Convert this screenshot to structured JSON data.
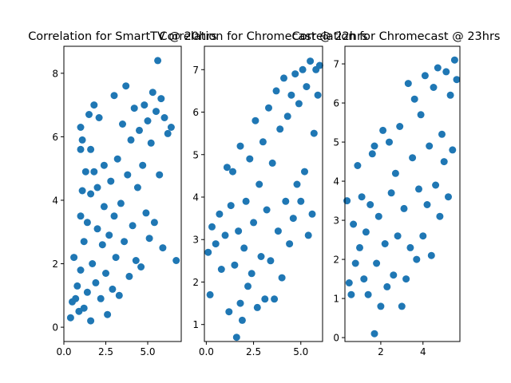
{
  "chart_data": [
    {
      "type": "scatter",
      "title": "Correlation for SmartTV @ 20hrs",
      "xlabel": "",
      "ylabel": "",
      "xlim": [
        0.0,
        7.0
      ],
      "ylim": [
        -0.45,
        8.85
      ],
      "xticks": [
        0.0,
        2.5,
        5.0
      ],
      "xtick_labels": [
        "0.0",
        "2.5",
        "5.0"
      ],
      "yticks": [
        0,
        2,
        4,
        6,
        8
      ],
      "ytick_labels": [
        "0",
        "2",
        "4",
        "6",
        "8"
      ],
      "grid": false,
      "color": "#1f77b4",
      "points": [
        [
          0.4,
          0.3
        ],
        [
          0.5,
          0.8
        ],
        [
          0.6,
          2.2
        ],
        [
          0.7,
          0.9
        ],
        [
          0.8,
          1.3
        ],
        [
          0.9,
          0.5
        ],
        [
          1.0,
          1.8
        ],
        [
          1.0,
          3.5
        ],
        [
          1.0,
          5.6
        ],
        [
          1.0,
          6.3
        ],
        [
          1.1,
          4.3
        ],
        [
          1.1,
          5.9
        ],
        [
          1.2,
          0.6
        ],
        [
          1.2,
          2.7
        ],
        [
          1.3,
          4.9
        ],
        [
          1.4,
          1.1
        ],
        [
          1.4,
          3.3
        ],
        [
          1.5,
          6.7
        ],
        [
          1.6,
          4.2
        ],
        [
          1.6,
          5.6
        ],
        [
          1.6,
          0.2
        ],
        [
          1.7,
          2.0
        ],
        [
          1.8,
          7.0
        ],
        [
          1.8,
          4.9
        ],
        [
          1.9,
          1.4
        ],
        [
          2.0,
          4.4
        ],
        [
          2.0,
          3.1
        ],
        [
          2.1,
          6.6
        ],
        [
          2.2,
          0.9
        ],
        [
          2.3,
          2.6
        ],
        [
          2.4,
          5.1
        ],
        [
          2.4,
          3.8
        ],
        [
          2.5,
          1.7
        ],
        [
          2.6,
          0.4
        ],
        [
          2.7,
          2.9
        ],
        [
          2.8,
          4.6
        ],
        [
          2.9,
          1.2
        ],
        [
          3.0,
          3.5
        ],
        [
          3.0,
          7.3
        ],
        [
          3.1,
          2.2
        ],
        [
          3.2,
          5.3
        ],
        [
          3.3,
          1.0
        ],
        [
          3.4,
          3.9
        ],
        [
          3.5,
          6.4
        ],
        [
          3.6,
          2.7
        ],
        [
          3.7,
          7.6
        ],
        [
          3.8,
          4.8
        ],
        [
          3.9,
          1.6
        ],
        [
          4.0,
          5.9
        ],
        [
          4.1,
          3.2
        ],
        [
          4.2,
          6.9
        ],
        [
          4.3,
          2.1
        ],
        [
          4.4,
          4.4
        ],
        [
          4.5,
          6.2
        ],
        [
          4.6,
          1.9
        ],
        [
          4.7,
          5.1
        ],
        [
          4.8,
          7.0
        ],
        [
          4.9,
          3.6
        ],
        [
          5.0,
          6.5
        ],
        [
          5.1,
          2.8
        ],
        [
          5.2,
          5.8
        ],
        [
          5.3,
          7.4
        ],
        [
          5.4,
          3.3
        ],
        [
          5.5,
          6.8
        ],
        [
          5.6,
          8.4
        ],
        [
          5.7,
          4.8
        ],
        [
          5.8,
          7.2
        ],
        [
          5.9,
          2.5
        ],
        [
          6.0,
          6.6
        ],
        [
          6.2,
          6.1
        ],
        [
          6.4,
          6.3
        ],
        [
          6.7,
          2.1
        ]
      ]
    },
    {
      "type": "scatter",
      "title": "Correlation for Chromecast @ 22hrs",
      "xlabel": "",
      "ylabel": "",
      "xlim": [
        -0.1,
        6.15
      ],
      "ylim": [
        0.6,
        7.55
      ],
      "xticks": [
        0.0,
        2.5,
        5.0
      ],
      "xtick_labels": [
        "0.0",
        "2.5",
        "5.0"
      ],
      "yticks": [
        1,
        2,
        3,
        4,
        5,
        6,
        7
      ],
      "ytick_labels": [
        "1",
        "2",
        "3",
        "4",
        "5",
        "6",
        "7"
      ],
      "grid": false,
      "color": "#1f77b4",
      "points": [
        [
          0.1,
          2.7
        ],
        [
          0.2,
          1.7
        ],
        [
          0.3,
          3.3
        ],
        [
          0.5,
          2.9
        ],
        [
          0.7,
          3.6
        ],
        [
          0.8,
          2.3
        ],
        [
          1.0,
          3.1
        ],
        [
          1.1,
          4.7
        ],
        [
          1.2,
          1.3
        ],
        [
          1.3,
          3.8
        ],
        [
          1.4,
          4.6
        ],
        [
          1.5,
          2.4
        ],
        [
          1.6,
          0.7
        ],
        [
          1.7,
          3.2
        ],
        [
          1.8,
          1.5
        ],
        [
          1.8,
          5.2
        ],
        [
          1.9,
          1.1
        ],
        [
          2.0,
          2.8
        ],
        [
          2.1,
          3.9
        ],
        [
          2.2,
          1.9
        ],
        [
          2.3,
          4.9
        ],
        [
          2.4,
          2.2
        ],
        [
          2.5,
          3.4
        ],
        [
          2.6,
          5.8
        ],
        [
          2.7,
          1.4
        ],
        [
          2.8,
          4.3
        ],
        [
          2.9,
          2.6
        ],
        [
          3.0,
          5.3
        ],
        [
          3.1,
          1.6
        ],
        [
          3.2,
          3.7
        ],
        [
          3.3,
          6.1
        ],
        [
          3.4,
          2.5
        ],
        [
          3.5,
          4.8
        ],
        [
          3.6,
          1.6
        ],
        [
          3.7,
          6.5
        ],
        [
          3.8,
          3.2
        ],
        [
          3.9,
          5.6
        ],
        [
          4.0,
          2.1
        ],
        [
          4.1,
          6.8
        ],
        [
          4.2,
          3.9
        ],
        [
          4.3,
          5.9
        ],
        [
          4.4,
          2.9
        ],
        [
          4.5,
          6.4
        ],
        [
          4.6,
          3.5
        ],
        [
          4.7,
          6.9
        ],
        [
          4.8,
          4.3
        ],
        [
          4.9,
          6.2
        ],
        [
          5.0,
          3.9
        ],
        [
          5.1,
          7.0
        ],
        [
          5.2,
          4.6
        ],
        [
          5.3,
          6.6
        ],
        [
          5.4,
          3.1
        ],
        [
          5.5,
          7.2
        ],
        [
          5.6,
          3.6
        ],
        [
          5.7,
          5.5
        ],
        [
          5.8,
          7.0
        ],
        [
          5.9,
          6.4
        ],
        [
          6.0,
          7.1
        ]
      ]
    },
    {
      "type": "scatter",
      "title": "Correlation for Chromecast @ 23hrs",
      "xlabel": "",
      "ylabel": "",
      "xlim": [
        0.3,
        5.75
      ],
      "ylim": [
        -0.1,
        7.45
      ],
      "xticks": [
        2,
        4
      ],
      "xtick_labels": [
        "2",
        "4"
      ],
      "yticks": [
        0,
        1,
        2,
        3,
        4,
        5,
        6,
        7
      ],
      "ytick_labels": [
        "0",
        "1",
        "2",
        "3",
        "4",
        "5",
        "6",
        "7"
      ],
      "grid": false,
      "color": "#1f77b4",
      "points": [
        [
          0.4,
          3.5
        ],
        [
          0.5,
          1.4
        ],
        [
          0.6,
          1.1
        ],
        [
          0.7,
          2.9
        ],
        [
          0.8,
          1.9
        ],
        [
          0.9,
          4.4
        ],
        [
          1.0,
          2.3
        ],
        [
          1.1,
          3.6
        ],
        [
          1.2,
          1.5
        ],
        [
          1.3,
          2.7
        ],
        [
          1.4,
          1.1
        ],
        [
          1.5,
          3.4
        ],
        [
          1.6,
          4.7
        ],
        [
          1.7,
          4.9
        ],
        [
          1.7,
          0.1
        ],
        [
          1.8,
          1.9
        ],
        [
          1.9,
          3.1
        ],
        [
          2.0,
          0.8
        ],
        [
          2.1,
          5.3
        ],
        [
          2.2,
          2.4
        ],
        [
          2.3,
          1.3
        ],
        [
          2.4,
          5.0
        ],
        [
          2.5,
          3.7
        ],
        [
          2.6,
          1.6
        ],
        [
          2.7,
          4.2
        ],
        [
          2.8,
          2.6
        ],
        [
          2.9,
          5.4
        ],
        [
          3.0,
          0.8
        ],
        [
          3.1,
          3.3
        ],
        [
          3.2,
          1.5
        ],
        [
          3.3,
          6.5
        ],
        [
          3.4,
          2.3
        ],
        [
          3.5,
          4.6
        ],
        [
          3.6,
          6.1
        ],
        [
          3.7,
          2.0
        ],
        [
          3.8,
          3.8
        ],
        [
          3.9,
          5.7
        ],
        [
          4.0,
          2.6
        ],
        [
          4.1,
          6.7
        ],
        [
          4.2,
          3.4
        ],
        [
          4.3,
          4.9
        ],
        [
          4.4,
          2.1
        ],
        [
          4.5,
          6.4
        ],
        [
          4.6,
          3.9
        ],
        [
          4.7,
          6.9
        ],
        [
          4.8,
          3.1
        ],
        [
          4.9,
          5.2
        ],
        [
          5.0,
          4.5
        ],
        [
          5.1,
          6.8
        ],
        [
          5.2,
          3.6
        ],
        [
          5.3,
          6.2
        ],
        [
          5.4,
          4.8
        ],
        [
          5.5,
          7.1
        ],
        [
          5.6,
          6.6
        ]
      ]
    }
  ]
}
